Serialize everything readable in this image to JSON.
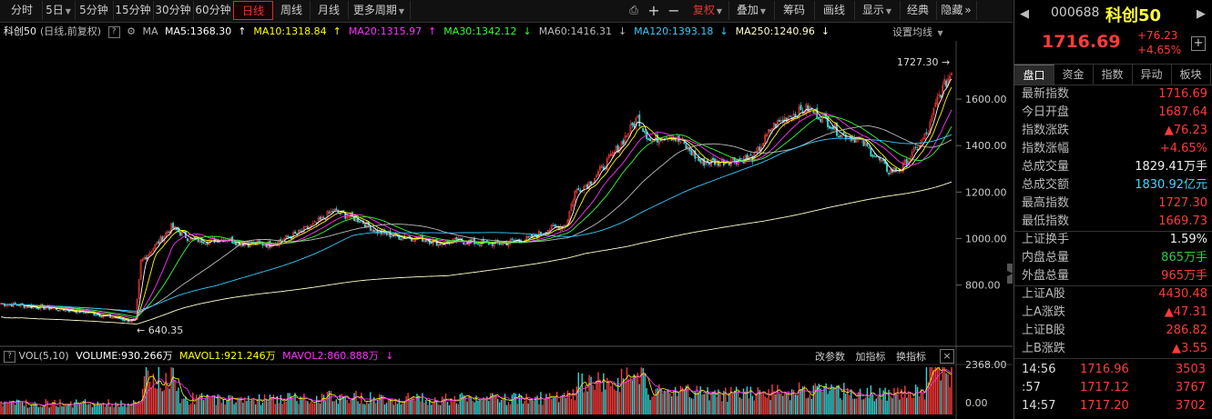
{
  "toolbar": {
    "items": [
      {
        "label": "分时"
      },
      {
        "label": "5日",
        "caret": true
      },
      {
        "label": "5分钟"
      },
      {
        "label": "15分钟"
      },
      {
        "label": "30分钟"
      },
      {
        "label": "60分钟"
      },
      {
        "label": "日线",
        "active": true
      },
      {
        "label": "周线"
      },
      {
        "label": "月线"
      },
      {
        "label": "更多周期",
        "caret": true
      }
    ],
    "right_items": [
      {
        "label": "复权",
        "caret": true,
        "red": true
      },
      {
        "label": "叠加",
        "caret": true
      },
      {
        "label": "筹码"
      },
      {
        "label": "画线"
      },
      {
        "label": "显示",
        "caret": true
      },
      {
        "label": "经典"
      },
      {
        "label": "隐藏",
        "arrow": "»"
      }
    ]
  },
  "ma_bar": {
    "title": "科创50",
    "subtitle": "(日线,前复权)",
    "ma_label": "MA",
    "items": [
      {
        "text": "MA5:1368.30",
        "color": "#ffffff",
        "arrow": "↑"
      },
      {
        "text": "MA10:1318.84",
        "color": "#ffff00",
        "arrow": "↑"
      },
      {
        "text": "MA20:1315.97",
        "color": "#ff33ff",
        "arrow": "↑"
      },
      {
        "text": "MA30:1342.12",
        "color": "#33ff33",
        "arrow": "↓"
      },
      {
        "text": "MA60:1416.31",
        "color": "#bbbbbb",
        "arrow": "↓"
      },
      {
        "text": "MA120:1393.18",
        "color": "#33ccff",
        "arrow": "↓"
      },
      {
        "text": "MA250:1240.96",
        "color": "#ffffcc",
        "arrow": "↓"
      }
    ],
    "settings": "设置均线"
  },
  "price_axis": [
    "1600.00",
    "1400.00",
    "1200.00",
    "1000.00",
    "800.00"
  ],
  "annotations": {
    "high": "1727.30",
    "low": "640.35"
  },
  "vol_bar": {
    "label": "VOL(5,10)",
    "volume": "VOLUME:930.266万",
    "mavol1": "MAVOL1:921.246万",
    "mavol2": "MAVOL2:860.888万",
    "buttons": [
      "改参数",
      "加指标",
      "换指标"
    ]
  },
  "vol_axis": [
    "2368.00",
    "0.00"
  ],
  "panel": {
    "code": "000688",
    "name": "科创50",
    "price": "1716.69",
    "change": "+76.23",
    "change_pct": "+4.65%",
    "tabs": [
      "盘口",
      "资金",
      "指数",
      "异动",
      "板块"
    ],
    "rows": [
      {
        "label": "最新指数",
        "value": "1716.69",
        "color": "up"
      },
      {
        "label": "今日开盘",
        "value": "1687.64",
        "color": "up"
      },
      {
        "label": "指数涨跌",
        "value": "▲76.23",
        "color": "up"
      },
      {
        "label": "指数涨幅",
        "value": "+4.65%",
        "color": "up"
      },
      {
        "label": "总成交量",
        "value": "1829.41万手",
        "color": "wh"
      },
      {
        "label": "总成交额",
        "value": "1830.92亿元",
        "color": "cy"
      },
      {
        "label": "最高指数",
        "value": "1727.30",
        "color": "up"
      },
      {
        "label": "最低指数",
        "value": "1669.73",
        "color": "up"
      },
      {
        "label": "上证换手",
        "value": "1.59%",
        "color": "wh"
      },
      {
        "label": "内盘总量",
        "value": "865万手",
        "color": "dn"
      },
      {
        "label": "外盘总量",
        "value": "965万手",
        "color": "up"
      },
      {
        "label": "上证A股",
        "value": "4430.48",
        "color": "up"
      },
      {
        "label": "上A涨跌",
        "value": "▲47.31",
        "color": "up"
      },
      {
        "label": "上证B股",
        "value": "286.82",
        "color": "up"
      },
      {
        "label": "上B涨跌",
        "value": "▲3.55",
        "color": "up"
      }
    ],
    "ticks": [
      {
        "time": "14:56",
        "price": "1716.96",
        "vol": "3503"
      },
      {
        "time": ":57",
        "price": "1717.12",
        "vol": "3767"
      },
      {
        "time": "14:57",
        "price": "1717.20",
        "vol": "3702"
      }
    ]
  },
  "chart_data": {
    "type": "candlestick",
    "y_range": [
      560,
      1780
    ],
    "volume_max": 2368,
    "waypoints": [
      [
        0,
        720
      ],
      [
        10,
        715
      ],
      [
        20,
        705
      ],
      [
        30,
        700
      ],
      [
        40,
        690
      ],
      [
        50,
        680
      ],
      [
        60,
        665
      ],
      [
        70,
        650
      ],
      [
        75,
        645
      ],
      [
        78,
        900
      ],
      [
        85,
        960
      ],
      [
        95,
        1050
      ],
      [
        105,
        1000
      ],
      [
        115,
        990
      ],
      [
        125,
        1000
      ],
      [
        135,
        980
      ],
      [
        150,
        975
      ],
      [
        165,
        1020
      ],
      [
        175,
        1060
      ],
      [
        185,
        1120
      ],
      [
        200,
        1080
      ],
      [
        210,
        1030
      ],
      [
        220,
        1010
      ],
      [
        235,
        1000
      ],
      [
        245,
        980
      ],
      [
        255,
        990
      ],
      [
        270,
        980
      ],
      [
        280,
        980
      ],
      [
        295,
        1000
      ],
      [
        305,
        1040
      ],
      [
        315,
        1060
      ],
      [
        320,
        1200
      ],
      [
        328,
        1240
      ],
      [
        335,
        1300
      ],
      [
        345,
        1400
      ],
      [
        355,
        1520
      ],
      [
        362,
        1420
      ],
      [
        372,
        1450
      ],
      [
        380,
        1410
      ],
      [
        390,
        1330
      ],
      [
        400,
        1330
      ],
      [
        410,
        1340
      ],
      [
        420,
        1350
      ],
      [
        430,
        1480
      ],
      [
        440,
        1530
      ],
      [
        450,
        1560
      ],
      [
        460,
        1510
      ],
      [
        468,
        1450
      ],
      [
        478,
        1430
      ],
      [
        487,
        1360
      ],
      [
        495,
        1290
      ],
      [
        502,
        1300
      ],
      [
        510,
        1380
      ],
      [
        517,
        1460
      ],
      [
        522,
        1600
      ],
      [
        526,
        1660
      ],
      [
        530,
        1716
      ]
    ]
  }
}
